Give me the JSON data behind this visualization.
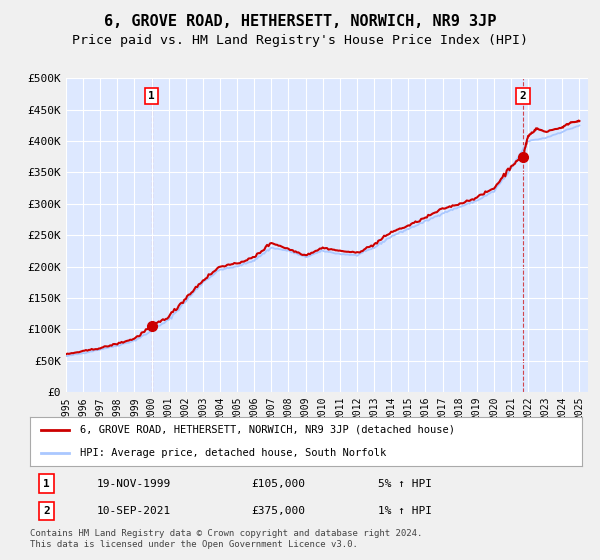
{
  "title": "6, GROVE ROAD, HETHERSETT, NORWICH, NR9 3JP",
  "subtitle": "Price paid vs. HM Land Registry's House Price Index (HPI)",
  "ylim": [
    0,
    500000
  ],
  "yticks": [
    0,
    50000,
    100000,
    150000,
    200000,
    250000,
    300000,
    350000,
    400000,
    450000,
    500000
  ],
  "ytick_labels": [
    "£0",
    "£50K",
    "£100K",
    "£150K",
    "£200K",
    "£250K",
    "£300K",
    "£350K",
    "£400K",
    "£450K",
    "£500K"
  ],
  "xlim_start": 1995.0,
  "xlim_end": 2025.5,
  "xticks": [
    1995,
    1996,
    1997,
    1998,
    1999,
    2000,
    2001,
    2002,
    2003,
    2004,
    2005,
    2006,
    2007,
    2008,
    2009,
    2010,
    2011,
    2012,
    2013,
    2014,
    2015,
    2016,
    2017,
    2018,
    2019,
    2020,
    2021,
    2022,
    2023,
    2024,
    2025
  ],
  "plot_bg_color": "#dde8ff",
  "grid_color": "#ffffff",
  "hpi_line_color": "#aac8ff",
  "price_line_color": "#cc0000",
  "marker1_date": 2000.0,
  "marker1_price": 105000,
  "marker2_date": 2021.7,
  "marker2_price": 375000,
  "legend_line1": "6, GROVE ROAD, HETHERSETT, NORWICH, NR9 3JP (detached house)",
  "legend_line2": "HPI: Average price, detached house, South Norfolk",
  "table_row1_label": "1",
  "table_row1_date": "19-NOV-1999",
  "table_row1_price": "£105,000",
  "table_row1_hpi": "5% ↑ HPI",
  "table_row2_label": "2",
  "table_row2_date": "10-SEP-2021",
  "table_row2_price": "£375,000",
  "table_row2_hpi": "1% ↑ HPI",
  "footnote": "Contains HM Land Registry data © Crown copyright and database right 2024.\nThis data is licensed under the Open Government Licence v3.0.",
  "title_fontsize": 11,
  "subtitle_fontsize": 9.5,
  "hpi_anchors": [
    [
      1995.0,
      57000
    ],
    [
      1996.0,
      62000
    ],
    [
      1997.0,
      68000
    ],
    [
      1998.0,
      74000
    ],
    [
      1999.0,
      82000
    ],
    [
      2000.0,
      97000
    ],
    [
      2001.0,
      115000
    ],
    [
      2002.0,
      145000
    ],
    [
      2003.0,
      175000
    ],
    [
      2004.0,
      195000
    ],
    [
      2005.0,
      200000
    ],
    [
      2006.0,
      210000
    ],
    [
      2007.0,
      230000
    ],
    [
      2008.0,
      225000
    ],
    [
      2009.0,
      215000
    ],
    [
      2010.0,
      225000
    ],
    [
      2011.0,
      220000
    ],
    [
      2012.0,
      218000
    ],
    [
      2013.0,
      230000
    ],
    [
      2014.0,
      248000
    ],
    [
      2015.0,
      260000
    ],
    [
      2016.0,
      272000
    ],
    [
      2017.0,
      285000
    ],
    [
      2018.0,
      295000
    ],
    [
      2019.0,
      305000
    ],
    [
      2020.0,
      320000
    ],
    [
      2021.0,
      355000
    ],
    [
      2022.0,
      400000
    ],
    [
      2023.0,
      405000
    ],
    [
      2024.0,
      415000
    ],
    [
      2025.0,
      425000
    ]
  ],
  "price_anchors": [
    [
      1995.0,
      60000
    ],
    [
      1996.0,
      65000
    ],
    [
      1997.0,
      70000
    ],
    [
      1998.0,
      77000
    ],
    [
      1999.0,
      85000
    ],
    [
      2000.0,
      105000
    ],
    [
      2001.0,
      120000
    ],
    [
      2002.0,
      150000
    ],
    [
      2003.0,
      178000
    ],
    [
      2004.0,
      200000
    ],
    [
      2005.0,
      205000
    ],
    [
      2006.0,
      215000
    ],
    [
      2007.0,
      238000
    ],
    [
      2008.0,
      228000
    ],
    [
      2009.0,
      218000
    ],
    [
      2010.0,
      230000
    ],
    [
      2011.0,
      225000
    ],
    [
      2012.0,
      222000
    ],
    [
      2013.0,
      235000
    ],
    [
      2014.0,
      255000
    ],
    [
      2015.0,
      265000
    ],
    [
      2016.0,
      278000
    ],
    [
      2017.0,
      292000
    ],
    [
      2018.0,
      300000
    ],
    [
      2019.0,
      310000
    ],
    [
      2020.0,
      325000
    ],
    [
      2021.0,
      360000
    ],
    [
      2021.7,
      375000
    ],
    [
      2022.0,
      408000
    ],
    [
      2022.5,
      420000
    ],
    [
      2023.0,
      415000
    ],
    [
      2024.0,
      422000
    ],
    [
      2024.5,
      430000
    ],
    [
      2025.0,
      432000
    ]
  ]
}
